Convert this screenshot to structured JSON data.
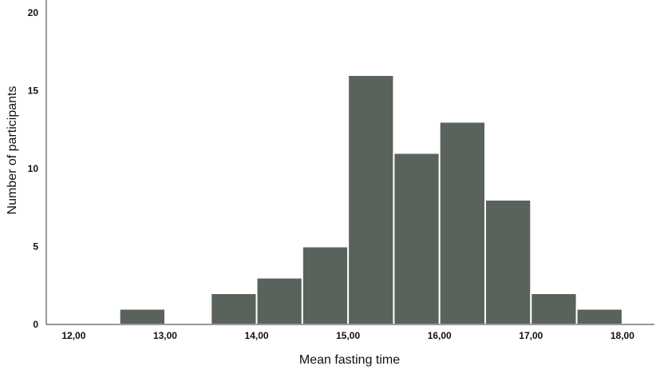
{
  "chart_data": {
    "type": "bar",
    "title": "",
    "xlabel": "Mean fasting time",
    "ylabel": "Number of participants",
    "bin_width": 0.5,
    "bins": [
      {
        "x0": 12.5,
        "x1": 13.0,
        "value": 1
      },
      {
        "x0": 13.5,
        "x1": 14.0,
        "value": 2
      },
      {
        "x0": 14.0,
        "x1": 14.5,
        "value": 3
      },
      {
        "x0": 14.5,
        "x1": 15.0,
        "value": 5
      },
      {
        "x0": 15.0,
        "x1": 15.5,
        "value": 16
      },
      {
        "x0": 15.5,
        "x1": 16.0,
        "value": 11
      },
      {
        "x0": 16.0,
        "x1": 16.5,
        "value": 13
      },
      {
        "x0": 16.5,
        "x1": 17.0,
        "value": 8
      },
      {
        "x0": 17.0,
        "x1": 17.5,
        "value": 2
      },
      {
        "x0": 17.5,
        "x1": 18.0,
        "value": 1
      }
    ],
    "xlim": [
      11.7,
      18.35
    ],
    "ylim": [
      0,
      20
    ],
    "x_ticks": [
      {
        "value": 12,
        "label": "12,00"
      },
      {
        "value": 13,
        "label": "13,00"
      },
      {
        "value": 14,
        "label": "14,00"
      },
      {
        "value": 15,
        "label": "15,00"
      },
      {
        "value": 16,
        "label": "16,00"
      },
      {
        "value": 17,
        "label": "17,00"
      },
      {
        "value": 18,
        "label": "18,00"
      }
    ],
    "y_ticks": [
      {
        "value": 0,
        "label": "0"
      },
      {
        "value": 5,
        "label": "5"
      },
      {
        "value": 10,
        "label": "10"
      },
      {
        "value": 15,
        "label": "15"
      },
      {
        "value": 20,
        "label": "20"
      }
    ],
    "bar_color": "#5a625c",
    "grid": false
  }
}
